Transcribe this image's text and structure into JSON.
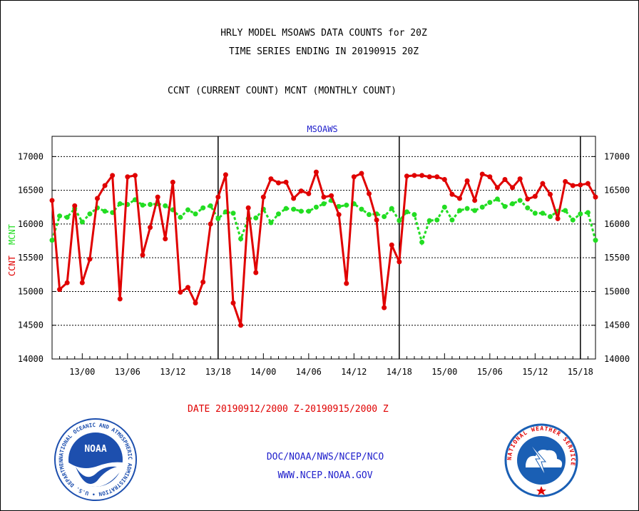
{
  "titles": {
    "line1": "HRLY MODEL MSOAWS DATA COUNTS for 20Z",
    "line2": "TIME SERIES ENDING IN 20190915 20Z",
    "line3": "CCNT (CURRENT COUNT) MCNT (MONTHLY COUNT)"
  },
  "footer": {
    "date_range": "DATE 20190912/2000 Z-20190915/2000 Z",
    "agency": "DOC/NOAA/NWS/NCEP/NCO",
    "url": "WWW.NCEP.NOAA.GOV"
  },
  "logos": {
    "noaa_text": "NOAA",
    "noaa_ring": "NATIONAL OCEANIC AND ATMOSPHERIC ADMINISTRATION • U.S. DEPARTMENT OF COMMERCE •",
    "nws_ring": "NATIONAL WEATHER SERVICE"
  },
  "colors": {
    "ccnt": "#e00000",
    "mcnt": "#22dd22",
    "label_blue": "#2020cc",
    "noaa_blue": "#1d4fae",
    "nws_blue": "#1a5fb4"
  },
  "chart_data": {
    "type": "line",
    "title": "MSOAWS",
    "ylabel_ccnt": "CCNT",
    "ylabel_mcnt": "MCNT",
    "ylim": [
      14000,
      17300
    ],
    "yticks": [
      14000,
      14500,
      15000,
      15500,
      16000,
      16500,
      17000
    ],
    "xlim": [
      0,
      72
    ],
    "xticks": [
      {
        "x": 4,
        "label": "13/00"
      },
      {
        "x": 10,
        "label": "13/06"
      },
      {
        "x": 16,
        "label": "13/12"
      },
      {
        "x": 22,
        "label": "13/18"
      },
      {
        "x": 28,
        "label": "14/00"
      },
      {
        "x": 34,
        "label": "14/06"
      },
      {
        "x": 40,
        "label": "14/12"
      },
      {
        "x": 46,
        "label": "14/18"
      },
      {
        "x": 52,
        "label": "15/00"
      },
      {
        "x": 58,
        "label": "15/06"
      },
      {
        "x": 64,
        "label": "15/12"
      },
      {
        "x": 70,
        "label": "15/18"
      }
    ],
    "day_boundaries": [
      22,
      46,
      70
    ],
    "grid": "horizontal-dotted",
    "series": [
      {
        "name": "CCNT",
        "values": [
          16350,
          15030,
          15130,
          16270,
          15130,
          15480,
          16380,
          16570,
          16720,
          14890,
          16700,
          16720,
          15540,
          15950,
          16400,
          15780,
          16620,
          14990,
          15060,
          14830,
          15140,
          16000,
          16400,
          16730,
          14830,
          14500,
          16240,
          15280,
          16400,
          16670,
          16610,
          16620,
          16380,
          16490,
          16450,
          16770,
          16400,
          16420,
          16140,
          15120,
          16700,
          16750,
          16450,
          16060,
          14760,
          15690,
          15440,
          16710,
          16720,
          16720,
          16700,
          16700,
          16660,
          16440,
          16380,
          16640,
          16350,
          16740,
          16700,
          16540,
          16660,
          16540,
          16670,
          16370,
          16410,
          16600,
          16440,
          16080,
          16630,
          16570,
          16580,
          16600,
          16400
        ]
      },
      {
        "name": "MCNT",
        "values": [
          15760,
          16120,
          16100,
          16230,
          16030,
          16150,
          16240,
          16190,
          16170,
          16300,
          16290,
          16360,
          16280,
          16290,
          16300,
          16270,
          16210,
          16100,
          16210,
          16150,
          16240,
          16270,
          16080,
          16180,
          16160,
          15780,
          16080,
          16090,
          16220,
          16020,
          16150,
          16230,
          16220,
          16190,
          16190,
          16250,
          16300,
          16350,
          16260,
          16280,
          16300,
          16220,
          16140,
          16150,
          16110,
          16230,
          16050,
          16180,
          16140,
          15730,
          16050,
          16060,
          16250,
          16060,
          16200,
          16230,
          16200,
          16250,
          16320,
          16370,
          16260,
          16300,
          16350,
          16240,
          16160,
          16160,
          16110,
          16190,
          16200,
          16060,
          16150,
          16170,
          15760
        ]
      }
    ]
  }
}
